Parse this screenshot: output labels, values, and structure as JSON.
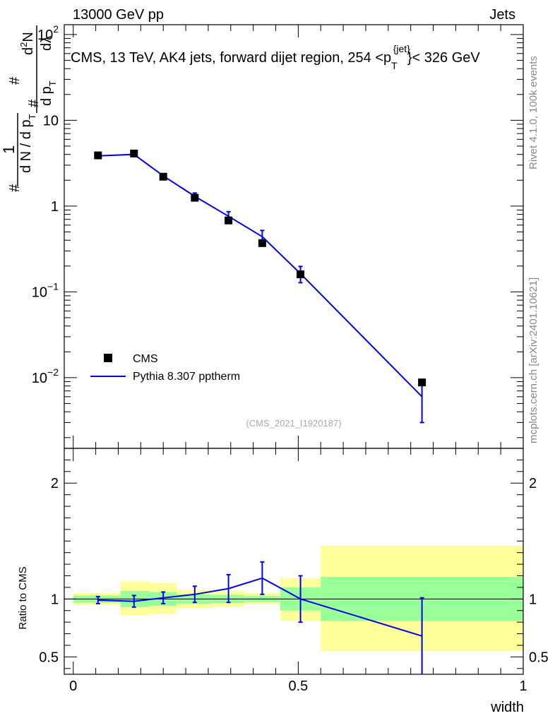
{
  "header": {
    "left": "13000 GeV pp",
    "right": "Jets"
  },
  "side_labels": {
    "rivet": "Rivet 4.1.0,  100k events",
    "mcplots": "mcplots.cern.ch [arXiv:2401.10621]"
  },
  "watermark": "(CMS_2021_I1920187)",
  "colors": {
    "mc": "#0000ee",
    "data": "#000000",
    "band_inner": "#99ff99",
    "band_outer": "#ffff99"
  },
  "chart_data": [
    {
      "type": "scatter",
      "panel": "main",
      "title": "CMS, 13 TeV, AK4 jets, forward dijet region, 254 < p_T^{jet} < 326 GeV",
      "title_main": "CMS, 13 TeV, AK4 jets, forward dijet region, 254 <p",
      "title_sub": "T",
      "title_sup": "{jet}",
      "title_tail": "}< 326 GeV",
      "ylabel": "1/(dN/dp_T) d²N/(dp_T dλ)",
      "ylabel_parts": {
        "hash1": "#",
        "one": "1",
        "dn": "d N / d p",
        "dn_sub": "T",
        "hash2": "#",
        "d2n": "d",
        "d2n_sup": "2",
        "d2n_n": "N",
        "dp": "d p",
        "dp_sub": "T",
        "dl": "d",
        "lambda": "λ",
        "hash3": "#"
      },
      "yscale": "log",
      "ylim": [
        0.0015,
        130
      ],
      "xlim": [
        -0.02,
        1.0
      ],
      "y_ticks": [
        {
          "value": 100,
          "base": "10",
          "exp": "2"
        },
        {
          "value": 10,
          "label": "10"
        },
        {
          "value": 1,
          "label": "1"
        },
        {
          "value": 0.1,
          "base": "10",
          "exp": "−1"
        },
        {
          "value": 0.01,
          "base": "10",
          "exp": "−2"
        }
      ],
      "series": [
        {
          "name": "CMS",
          "kind": "data",
          "x": [
            0.055,
            0.135,
            0.2,
            0.27,
            0.345,
            0.42,
            0.505,
            0.775
          ],
          "x_err": [
            0.04,
            0.04,
            0.025,
            0.03,
            0.03,
            0.04,
            0.045,
            0.225
          ],
          "y": [
            3.9,
            4.1,
            2.2,
            1.25,
            0.68,
            0.37,
            0.16,
            0.0088
          ],
          "y_err": [
            0.15,
            0.15,
            0.08,
            0.08,
            0.05,
            0.03,
            0.02,
            0.001
          ]
        },
        {
          "name": "Pythia 8.307 pptherm",
          "kind": "mc",
          "x": [
            0.055,
            0.135,
            0.2,
            0.27,
            0.345,
            0.42,
            0.505,
            0.775
          ],
          "y": [
            3.85,
            4.0,
            2.25,
            1.3,
            0.76,
            0.44,
            0.163,
            0.006
          ],
          "y_err": [
            0.15,
            0.15,
            0.12,
            0.12,
            0.1,
            0.08,
            0.035,
            0.003
          ]
        }
      ],
      "legend": {
        "position": "lower-left",
        "entries": [
          "CMS",
          "Pythia 8.307 pptherm"
        ]
      }
    },
    {
      "type": "line",
      "panel": "ratio",
      "ylabel": "Ratio to CMS",
      "xlabel": "width",
      "ylim": [
        0.35,
        2.3
      ],
      "xlim": [
        -0.02,
        1.0
      ],
      "x_ticks": [
        {
          "value": 0,
          "label": "0"
        },
        {
          "value": 0.5,
          "label": "0.5"
        },
        {
          "value": 1,
          "label": "1"
        }
      ],
      "y_ticks": [
        {
          "value": 0.5,
          "label": "0.5"
        },
        {
          "value": 1,
          "label": "1"
        },
        {
          "value": 2,
          "label": "2"
        }
      ],
      "bands": [
        {
          "x0": 0.0,
          "x1": 0.105,
          "outer": [
            0.95,
            1.05
          ],
          "inner": [
            0.97,
            1.03
          ]
        },
        {
          "x0": 0.105,
          "x1": 0.17,
          "outer": [
            0.86,
            1.15
          ],
          "inner": [
            0.93,
            1.07
          ]
        },
        {
          "x0": 0.17,
          "x1": 0.23,
          "outer": [
            0.87,
            1.14
          ],
          "inner": [
            0.94,
            1.06
          ]
        },
        {
          "x0": 0.23,
          "x1": 0.305,
          "outer": [
            0.92,
            1.08
          ],
          "inner": [
            0.96,
            1.04
          ]
        },
        {
          "x0": 0.305,
          "x1": 0.38,
          "outer": [
            0.93,
            1.07
          ],
          "inner": [
            0.965,
            1.035
          ]
        },
        {
          "x0": 0.38,
          "x1": 0.46,
          "outer": [
            0.955,
            1.05
          ],
          "inner": [
            0.975,
            1.025
          ]
        },
        {
          "x0": 0.46,
          "x1": 0.55,
          "outer": [
            0.81,
            1.18
          ],
          "inner": [
            0.9,
            1.1
          ]
        },
        {
          "x0": 0.55,
          "x1": 1.0,
          "outer": [
            0.55,
            1.46
          ],
          "inner": [
            0.81,
            1.19
          ]
        }
      ],
      "series": [
        {
          "name": "Pythia 8.307 pptherm / CMS",
          "x": [
            0.055,
            0.135,
            0.2,
            0.27,
            0.345,
            0.42,
            0.505,
            0.775
          ],
          "y": [
            0.99,
            0.98,
            1.01,
            1.04,
            1.09,
            1.18,
            1.0,
            0.68
          ],
          "y_err": [
            0.03,
            0.05,
            0.05,
            0.07,
            0.12,
            0.14,
            0.2,
            0.33
          ],
          "x_err": [
            0.04,
            0.04,
            0.025,
            0.03,
            0.03,
            0.04,
            0.045,
            0.225
          ]
        }
      ]
    }
  ]
}
